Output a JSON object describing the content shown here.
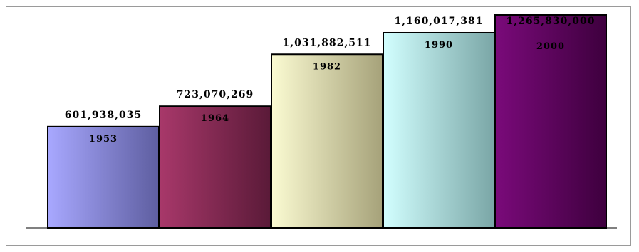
{
  "chart_data": {
    "type": "bar",
    "categories": [
      "1953",
      "1964",
      "1982",
      "1990",
      "2000"
    ],
    "values": [
      601938035,
      723070269,
      1031882511,
      1160017381,
      1265830000
    ],
    "value_labels": [
      "601,938,035",
      "723,070,269",
      "1,031,882,511",
      "1,160,017,381",
      "1,265,830,000"
    ],
    "title": "",
    "xlabel": "",
    "ylabel": "",
    "ylim": [
      0,
      1265830000
    ],
    "grid": false,
    "legend": "none",
    "bar_gradients": [
      [
        "#a8a8ff",
        "#5e5ea0"
      ],
      [
        "#a8386a",
        "#5a1a38"
      ],
      [
        "#fbfbd2",
        "#a6a27a"
      ],
      [
        "#d2ffff",
        "#7aa6a6"
      ],
      [
        "#7a0a7a",
        "#3e003e"
      ]
    ]
  }
}
